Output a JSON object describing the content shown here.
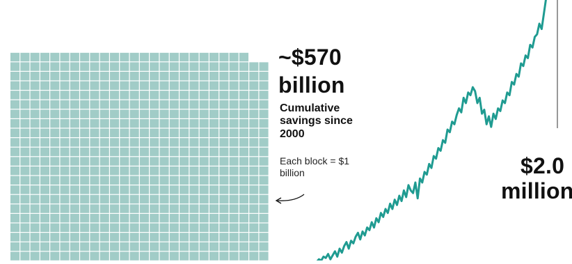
{
  "chart_data": [
    {
      "type": "waffle",
      "blocks_total": 570,
      "columns": 26,
      "full_rows": 21,
      "unit": "$1 billion",
      "headline": "~$570",
      "headline_unit": "billion",
      "description": "Cumulative savings since 2000",
      "note": "Each block = $1 billion",
      "color": "#a1ccc7"
    },
    {
      "type": "line",
      "headline": "$2.0",
      "headline_unit": "million",
      "color": "#1f9b91",
      "ylim": [
        0,
        1
      ],
      "x": [
        0,
        1,
        2,
        3,
        4,
        5,
        6,
        7,
        8,
        9,
        10,
        11,
        12,
        13,
        14,
        15,
        16,
        17,
        18,
        19,
        20,
        21,
        22,
        23,
        24,
        25,
        26,
        27,
        28,
        29,
        30,
        31,
        32,
        33,
        34,
        35,
        36,
        37,
        38,
        39,
        40,
        41,
        42,
        43,
        44,
        45,
        46,
        47,
        48,
        49,
        50,
        51,
        52,
        53,
        54,
        55,
        56,
        57,
        58,
        59,
        60,
        61,
        62,
        63,
        64,
        65,
        66,
        67,
        68,
        69,
        70,
        71,
        72,
        73,
        74,
        75,
        76,
        77,
        78,
        79,
        80,
        81,
        82,
        83,
        84,
        85,
        86,
        87,
        88,
        89,
        90,
        91,
        92,
        93,
        94,
        95,
        96,
        97,
        98,
        99,
        100
      ],
      "values": [
        0.0,
        0.01,
        0.005,
        0.02,
        0.015,
        0.03,
        0.01,
        0.025,
        0.04,
        0.02,
        0.05,
        0.035,
        0.06,
        0.075,
        0.05,
        0.08,
        0.07,
        0.095,
        0.11,
        0.085,
        0.115,
        0.1,
        0.13,
        0.12,
        0.15,
        0.13,
        0.165,
        0.15,
        0.185,
        0.17,
        0.2,
        0.185,
        0.22,
        0.2,
        0.235,
        0.215,
        0.25,
        0.23,
        0.27,
        0.245,
        0.29,
        0.27,
        0.26,
        0.3,
        0.24,
        0.315,
        0.3,
        0.34,
        0.33,
        0.37,
        0.355,
        0.4,
        0.39,
        0.43,
        0.42,
        0.46,
        0.45,
        0.5,
        0.49,
        0.53,
        0.52,
        0.555,
        0.58,
        0.565,
        0.62,
        0.6,
        0.64,
        0.63,
        0.66,
        0.645,
        0.6,
        0.62,
        0.56,
        0.575,
        0.52,
        0.55,
        0.51,
        0.56,
        0.54,
        0.58,
        0.57,
        0.61,
        0.6,
        0.64,
        0.63,
        0.68,
        0.67,
        0.71,
        0.7,
        0.75,
        0.74,
        0.78,
        0.77,
        0.82,
        0.81,
        0.85,
        0.86,
        0.9,
        0.88,
        0.94,
        1.0
      ]
    }
  ],
  "colors": {
    "waffle_fill": "#a1ccc7",
    "line_stroke": "#1f9b91",
    "text": "#111111",
    "marker": "#555555"
  }
}
